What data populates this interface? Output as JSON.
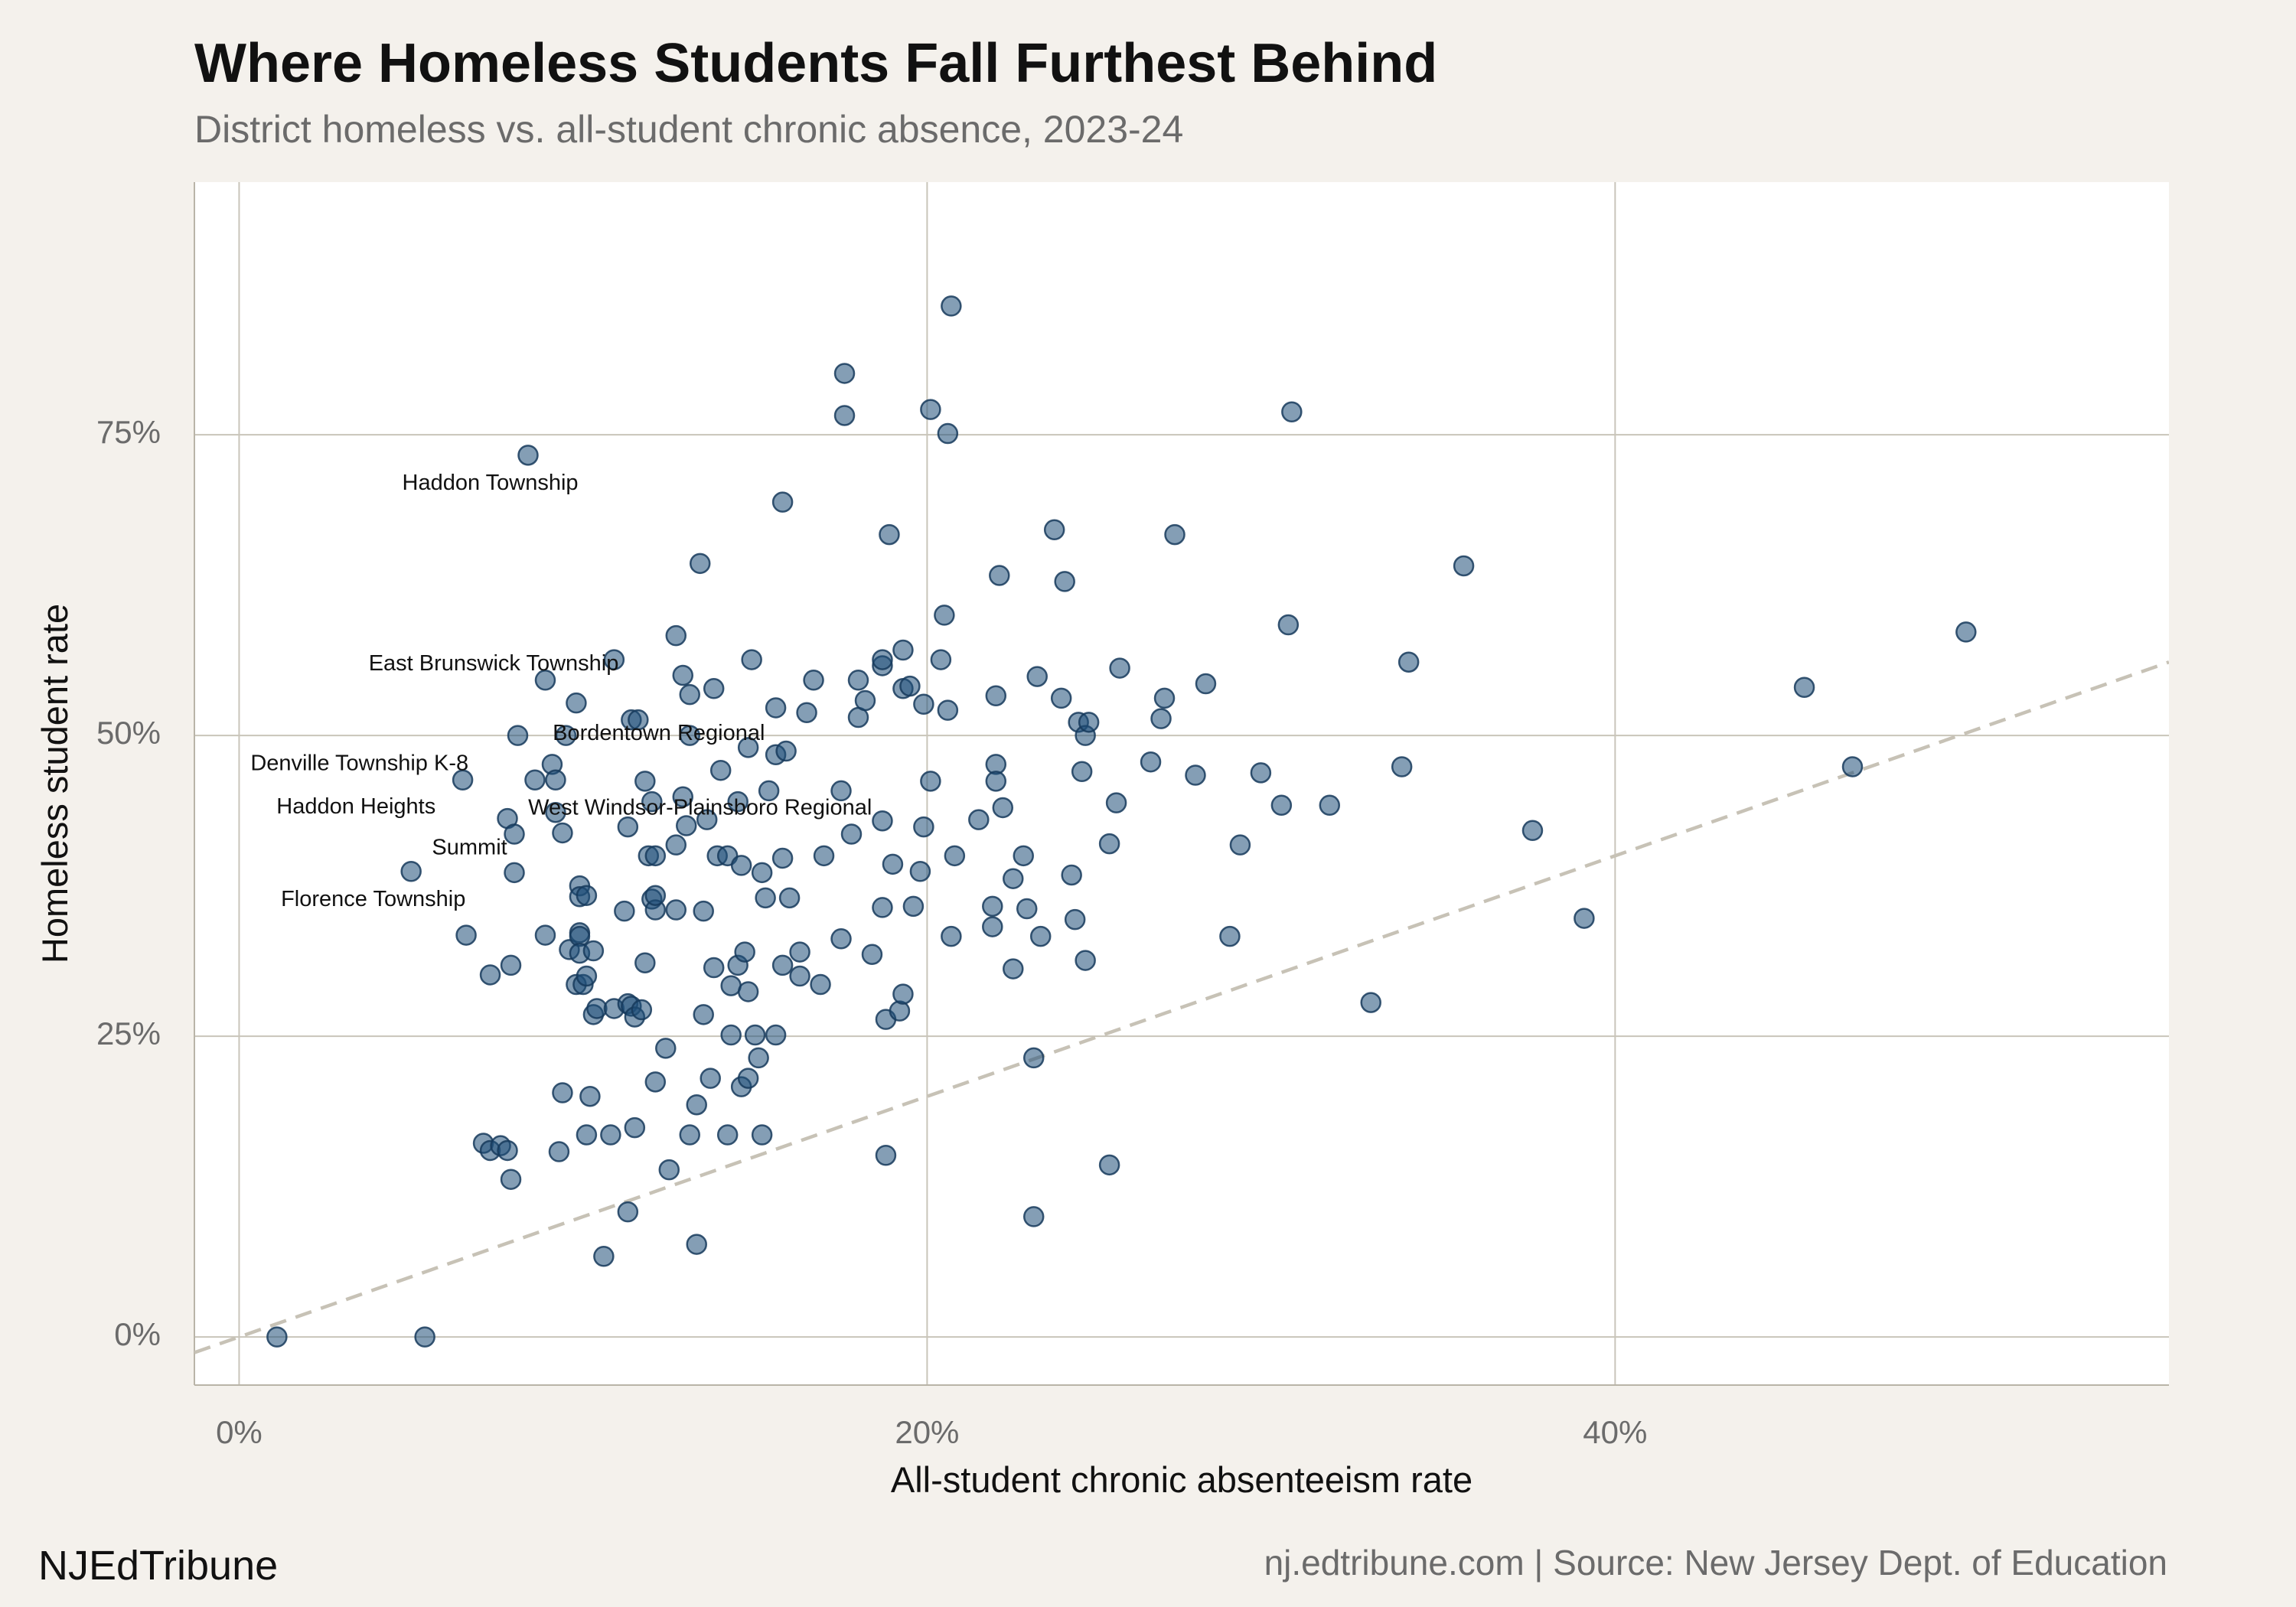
{
  "header": {
    "title": "Where Homeless Students Fall Furthest Behind",
    "subtitle": "District homeless vs. all-student chronic absence, 2023-24"
  },
  "footer": {
    "brand": "NJEdTribune",
    "source": "nj.edtribune.com | Source: New Jersey Dept. of Education"
  },
  "colors": {
    "background": "#f4f1ec",
    "panel": "#ffffff",
    "grid": "#c9c5ba",
    "point_fill": "#1f4e79",
    "point_stroke": "#163a5c",
    "reference_line": "#c7c2b6"
  },
  "chart_data": {
    "type": "scatter",
    "title": "Where Homeless Students Fall Furthest Behind",
    "subtitle": "District homeless vs. all-student chronic absence, 2023-24",
    "xlabel": "All-student chronic absenteeism rate",
    "ylabel": "Homeless student rate",
    "xlim": [
      -0.013,
      0.561
    ],
    "ylim": [
      -0.04,
      0.96
    ],
    "x_ticks": [
      0,
      0.2,
      0.4
    ],
    "x_tick_labels": [
      "0%",
      "20%",
      "40%"
    ],
    "y_ticks": [
      0,
      0.25,
      0.5,
      0.75
    ],
    "y_tick_labels": [
      "0%",
      "25%",
      "50%",
      "75%"
    ],
    "grid": true,
    "reference_line": {
      "style": "dashed",
      "from": [
        -0.013,
        -0.013
      ],
      "to": [
        0.561,
        0.561
      ]
    },
    "points": [
      {
        "x": 0.011,
        "y": 0.0
      },
      {
        "x": 0.054,
        "y": 0.0
      },
      {
        "x": 0.05,
        "y": 0.387
      },
      {
        "x": 0.065,
        "y": 0.463
      },
      {
        "x": 0.066,
        "y": 0.334
      },
      {
        "x": 0.073,
        "y": 0.301
      },
      {
        "x": 0.071,
        "y": 0.161
      },
      {
        "x": 0.073,
        "y": 0.155
      },
      {
        "x": 0.076,
        "y": 0.159
      },
      {
        "x": 0.078,
        "y": 0.155
      },
      {
        "x": 0.079,
        "y": 0.131
      },
      {
        "x": 0.079,
        "y": 0.309
      },
      {
        "x": 0.078,
        "y": 0.431
      },
      {
        "x": 0.08,
        "y": 0.418
      },
      {
        "x": 0.08,
        "y": 0.386
      },
      {
        "x": 0.081,
        "y": 0.5
      },
      {
        "x": 0.084,
        "y": 0.733
      },
      {
        "x": 0.086,
        "y": 0.463
      },
      {
        "x": 0.089,
        "y": 0.334
      },
      {
        "x": 0.089,
        "y": 0.546
      },
      {
        "x": 0.091,
        "y": 0.476
      },
      {
        "x": 0.092,
        "y": 0.463
      },
      {
        "x": 0.092,
        "y": 0.436
      },
      {
        "x": 0.093,
        "y": 0.154
      },
      {
        "x": 0.094,
        "y": 0.203
      },
      {
        "x": 0.094,
        "y": 0.419
      },
      {
        "x": 0.095,
        "y": 0.5
      },
      {
        "x": 0.096,
        "y": 0.322
      },
      {
        "x": 0.098,
        "y": 0.527
      },
      {
        "x": 0.098,
        "y": 0.293
      },
      {
        "x": 0.099,
        "y": 0.375
      },
      {
        "x": 0.099,
        "y": 0.366
      },
      {
        "x": 0.099,
        "y": 0.336
      },
      {
        "x": 0.099,
        "y": 0.333
      },
      {
        "x": 0.099,
        "y": 0.319
      },
      {
        "x": 0.1,
        "y": 0.293
      },
      {
        "x": 0.101,
        "y": 0.3
      },
      {
        "x": 0.101,
        "y": 0.168
      },
      {
        "x": 0.101,
        "y": 0.367
      },
      {
        "x": 0.102,
        "y": 0.2
      },
      {
        "x": 0.103,
        "y": 0.268
      },
      {
        "x": 0.103,
        "y": 0.321
      },
      {
        "x": 0.104,
        "y": 0.273
      },
      {
        "x": 0.106,
        "y": 0.067
      },
      {
        "x": 0.108,
        "y": 0.168
      },
      {
        "x": 0.109,
        "y": 0.273
      },
      {
        "x": 0.109,
        "y": 0.563
      },
      {
        "x": 0.112,
        "y": 0.354
      },
      {
        "x": 0.113,
        "y": 0.424
      },
      {
        "x": 0.113,
        "y": 0.277
      },
      {
        "x": 0.113,
        "y": 0.104
      },
      {
        "x": 0.114,
        "y": 0.513
      },
      {
        "x": 0.114,
        "y": 0.275
      },
      {
        "x": 0.115,
        "y": 0.266
      },
      {
        "x": 0.115,
        "y": 0.174
      },
      {
        "x": 0.116,
        "y": 0.513
      },
      {
        "x": 0.117,
        "y": 0.272
      },
      {
        "x": 0.118,
        "y": 0.311
      },
      {
        "x": 0.118,
        "y": 0.462
      },
      {
        "x": 0.119,
        "y": 0.4
      },
      {
        "x": 0.12,
        "y": 0.445
      },
      {
        "x": 0.12,
        "y": 0.364
      },
      {
        "x": 0.121,
        "y": 0.212
      },
      {
        "x": 0.121,
        "y": 0.355
      },
      {
        "x": 0.121,
        "y": 0.4
      },
      {
        "x": 0.121,
        "y": 0.367
      },
      {
        "x": 0.124,
        "y": 0.24
      },
      {
        "x": 0.125,
        "y": 0.139
      },
      {
        "x": 0.127,
        "y": 0.583
      },
      {
        "x": 0.127,
        "y": 0.355
      },
      {
        "x": 0.127,
        "y": 0.409
      },
      {
        "x": 0.129,
        "y": 0.55
      },
      {
        "x": 0.129,
        "y": 0.449
      },
      {
        "x": 0.13,
        "y": 0.425
      },
      {
        "x": 0.131,
        "y": 0.5
      },
      {
        "x": 0.131,
        "y": 0.534
      },
      {
        "x": 0.131,
        "y": 0.168
      },
      {
        "x": 0.133,
        "y": 0.193
      },
      {
        "x": 0.133,
        "y": 0.077
      },
      {
        "x": 0.134,
        "y": 0.643
      },
      {
        "x": 0.135,
        "y": 0.268
      },
      {
        "x": 0.135,
        "y": 0.354
      },
      {
        "x": 0.136,
        "y": 0.43
      },
      {
        "x": 0.137,
        "y": 0.215
      },
      {
        "x": 0.138,
        "y": 0.539
      },
      {
        "x": 0.138,
        "y": 0.307
      },
      {
        "x": 0.139,
        "y": 0.4
      },
      {
        "x": 0.14,
        "y": 0.471
      },
      {
        "x": 0.142,
        "y": 0.4
      },
      {
        "x": 0.142,
        "y": 0.168
      },
      {
        "x": 0.143,
        "y": 0.292
      },
      {
        "x": 0.143,
        "y": 0.251
      },
      {
        "x": 0.145,
        "y": 0.309
      },
      {
        "x": 0.145,
        "y": 0.445
      },
      {
        "x": 0.146,
        "y": 0.392
      },
      {
        "x": 0.146,
        "y": 0.208
      },
      {
        "x": 0.147,
        "y": 0.32
      },
      {
        "x": 0.148,
        "y": 0.49
      },
      {
        "x": 0.148,
        "y": 0.287
      },
      {
        "x": 0.148,
        "y": 0.215
      },
      {
        "x": 0.149,
        "y": 0.563
      },
      {
        "x": 0.15,
        "y": 0.251
      },
      {
        "x": 0.151,
        "y": 0.232
      },
      {
        "x": 0.152,
        "y": 0.386
      },
      {
        "x": 0.152,
        "y": 0.168
      },
      {
        "x": 0.153,
        "y": 0.365
      },
      {
        "x": 0.154,
        "y": 0.454
      },
      {
        "x": 0.156,
        "y": 0.251
      },
      {
        "x": 0.156,
        "y": 0.484
      },
      {
        "x": 0.156,
        "y": 0.523
      },
      {
        "x": 0.158,
        "y": 0.694
      },
      {
        "x": 0.158,
        "y": 0.309
      },
      {
        "x": 0.158,
        "y": 0.398
      },
      {
        "x": 0.159,
        "y": 0.487
      },
      {
        "x": 0.16,
        "y": 0.365
      },
      {
        "x": 0.163,
        "y": 0.32
      },
      {
        "x": 0.163,
        "y": 0.3
      },
      {
        "x": 0.165,
        "y": 0.519
      },
      {
        "x": 0.167,
        "y": 0.546
      },
      {
        "x": 0.169,
        "y": 0.293
      },
      {
        "x": 0.17,
        "y": 0.4
      },
      {
        "x": 0.175,
        "y": 0.331
      },
      {
        "x": 0.175,
        "y": 0.454
      },
      {
        "x": 0.176,
        "y": 0.801
      },
      {
        "x": 0.176,
        "y": 0.766
      },
      {
        "x": 0.178,
        "y": 0.418
      },
      {
        "x": 0.18,
        "y": 0.515
      },
      {
        "x": 0.18,
        "y": 0.546
      },
      {
        "x": 0.182,
        "y": 0.529
      },
      {
        "x": 0.184,
        "y": 0.318
      },
      {
        "x": 0.187,
        "y": 0.429
      },
      {
        "x": 0.187,
        "y": 0.357
      },
      {
        "x": 0.187,
        "y": 0.558
      },
      {
        "x": 0.187,
        "y": 0.563
      },
      {
        "x": 0.188,
        "y": 0.151
      },
      {
        "x": 0.188,
        "y": 0.264
      },
      {
        "x": 0.189,
        "y": 0.667
      },
      {
        "x": 0.19,
        "y": 0.393
      },
      {
        "x": 0.192,
        "y": 0.271
      },
      {
        "x": 0.193,
        "y": 0.285
      },
      {
        "x": 0.193,
        "y": 0.539
      },
      {
        "x": 0.193,
        "y": 0.571
      },
      {
        "x": 0.195,
        "y": 0.541
      },
      {
        "x": 0.196,
        "y": 0.358
      },
      {
        "x": 0.198,
        "y": 0.387
      },
      {
        "x": 0.199,
        "y": 0.424
      },
      {
        "x": 0.199,
        "y": 0.526
      },
      {
        "x": 0.201,
        "y": 0.462
      },
      {
        "x": 0.201,
        "y": 0.771
      },
      {
        "x": 0.204,
        "y": 0.563
      },
      {
        "x": 0.205,
        "y": 0.6
      },
      {
        "x": 0.206,
        "y": 0.751
      },
      {
        "x": 0.206,
        "y": 0.521
      },
      {
        "x": 0.207,
        "y": 0.857
      },
      {
        "x": 0.207,
        "y": 0.333
      },
      {
        "x": 0.208,
        "y": 0.4
      },
      {
        "x": 0.215,
        "y": 0.43
      },
      {
        "x": 0.219,
        "y": 0.358
      },
      {
        "x": 0.219,
        "y": 0.341
      },
      {
        "x": 0.22,
        "y": 0.533
      },
      {
        "x": 0.22,
        "y": 0.476
      },
      {
        "x": 0.22,
        "y": 0.462
      },
      {
        "x": 0.221,
        "y": 0.633
      },
      {
        "x": 0.222,
        "y": 0.44
      },
      {
        "x": 0.225,
        "y": 0.306
      },
      {
        "x": 0.225,
        "y": 0.381
      },
      {
        "x": 0.228,
        "y": 0.4
      },
      {
        "x": 0.229,
        "y": 0.356
      },
      {
        "x": 0.231,
        "y": 0.232
      },
      {
        "x": 0.231,
        "y": 0.1
      },
      {
        "x": 0.232,
        "y": 0.549
      },
      {
        "x": 0.233,
        "y": 0.333
      },
      {
        "x": 0.237,
        "y": 0.671
      },
      {
        "x": 0.239,
        "y": 0.531
      },
      {
        "x": 0.24,
        "y": 0.628
      },
      {
        "x": 0.242,
        "y": 0.384
      },
      {
        "x": 0.243,
        "y": 0.347
      },
      {
        "x": 0.244,
        "y": 0.511
      },
      {
        "x": 0.245,
        "y": 0.47
      },
      {
        "x": 0.246,
        "y": 0.313
      },
      {
        "x": 0.246,
        "y": 0.5
      },
      {
        "x": 0.247,
        "y": 0.511
      },
      {
        "x": 0.253,
        "y": 0.143
      },
      {
        "x": 0.253,
        "y": 0.41
      },
      {
        "x": 0.255,
        "y": 0.444
      },
      {
        "x": 0.256,
        "y": 0.556
      },
      {
        "x": 0.265,
        "y": 0.478
      },
      {
        "x": 0.268,
        "y": 0.514
      },
      {
        "x": 0.269,
        "y": 0.531
      },
      {
        "x": 0.272,
        "y": 0.667
      },
      {
        "x": 0.278,
        "y": 0.467
      },
      {
        "x": 0.281,
        "y": 0.543
      },
      {
        "x": 0.288,
        "y": 0.333
      },
      {
        "x": 0.291,
        "y": 0.409
      },
      {
        "x": 0.297,
        "y": 0.469
      },
      {
        "x": 0.303,
        "y": 0.442
      },
      {
        "x": 0.305,
        "y": 0.592
      },
      {
        "x": 0.306,
        "y": 0.769
      },
      {
        "x": 0.317,
        "y": 0.442
      },
      {
        "x": 0.329,
        "y": 0.278
      },
      {
        "x": 0.338,
        "y": 0.474
      },
      {
        "x": 0.34,
        "y": 0.561
      },
      {
        "x": 0.356,
        "y": 0.641
      },
      {
        "x": 0.376,
        "y": 0.421
      },
      {
        "x": 0.391,
        "y": 0.348
      },
      {
        "x": 0.455,
        "y": 0.54
      },
      {
        "x": 0.469,
        "y": 0.474
      },
      {
        "x": 0.502,
        "y": 0.586
      }
    ],
    "annotations": [
      {
        "label": "Haddon Township",
        "x": 0.073,
        "y": 0.709
      },
      {
        "label": "East Brunswick Township",
        "x": 0.074,
        "y": 0.559
      },
      {
        "label": "Bordentown Regional",
        "x": 0.122,
        "y": 0.501
      },
      {
        "label": "Denville Township K-8",
        "x": 0.035,
        "y": 0.476
      },
      {
        "label": "Haddon Heights",
        "x": 0.034,
        "y": 0.44
      },
      {
        "label": "West Windsor-Plainsboro Regional",
        "x": 0.134,
        "y": 0.439
      },
      {
        "label": "Summit",
        "x": 0.067,
        "y": 0.406
      },
      {
        "label": "Florence Township",
        "x": 0.039,
        "y": 0.363
      }
    ]
  }
}
